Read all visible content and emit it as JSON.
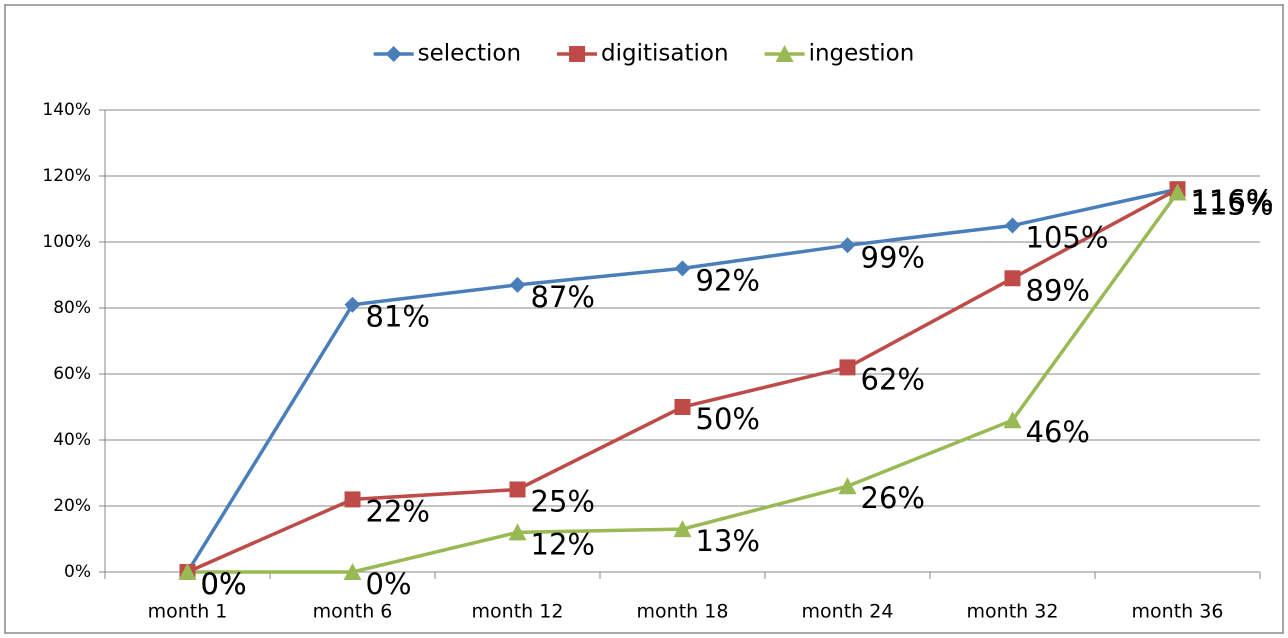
{
  "chart_data": {
    "type": "line",
    "categories": [
      "month 1",
      "month 6",
      "month 12",
      "month 18",
      "month 24",
      "month 32",
      "month 36"
    ],
    "series": [
      {
        "name": "selection",
        "color": "#4a7ebb",
        "marker": "diamond",
        "values": [
          0,
          81,
          87,
          92,
          99,
          105,
          116
        ],
        "value_labels": [
          "0%",
          "81%",
          "87%",
          "92%",
          "99%",
          "105%",
          "116%"
        ]
      },
      {
        "name": "digitisation",
        "color": "#be4b48",
        "marker": "square",
        "values": [
          0,
          22,
          25,
          50,
          62,
          89,
          116
        ],
        "value_labels": [
          "0%",
          "22%",
          "25%",
          "50%",
          "62%",
          "89%",
          "116%"
        ]
      },
      {
        "name": "ingestion",
        "color": "#98b954",
        "marker": "triangle",
        "values": [
          0,
          0,
          12,
          13,
          26,
          46,
          115
        ],
        "value_labels": [
          "0%",
          "0%",
          "12%",
          "13%",
          "26%",
          "46%",
          "115%"
        ]
      }
    ],
    "ylim": [
      0,
      140
    ],
    "yticks": [
      {
        "value": 0,
        "label": "0%"
      },
      {
        "value": 20,
        "label": "20%"
      },
      {
        "value": 40,
        "label": "40%"
      },
      {
        "value": 60,
        "label": "60%"
      },
      {
        "value": 80,
        "label": "80%"
      },
      {
        "value": 100,
        "label": "100%"
      },
      {
        "value": 120,
        "label": "120%"
      },
      {
        "value": 140,
        "label": "140%"
      }
    ],
    "grid": true,
    "legend": "top"
  }
}
